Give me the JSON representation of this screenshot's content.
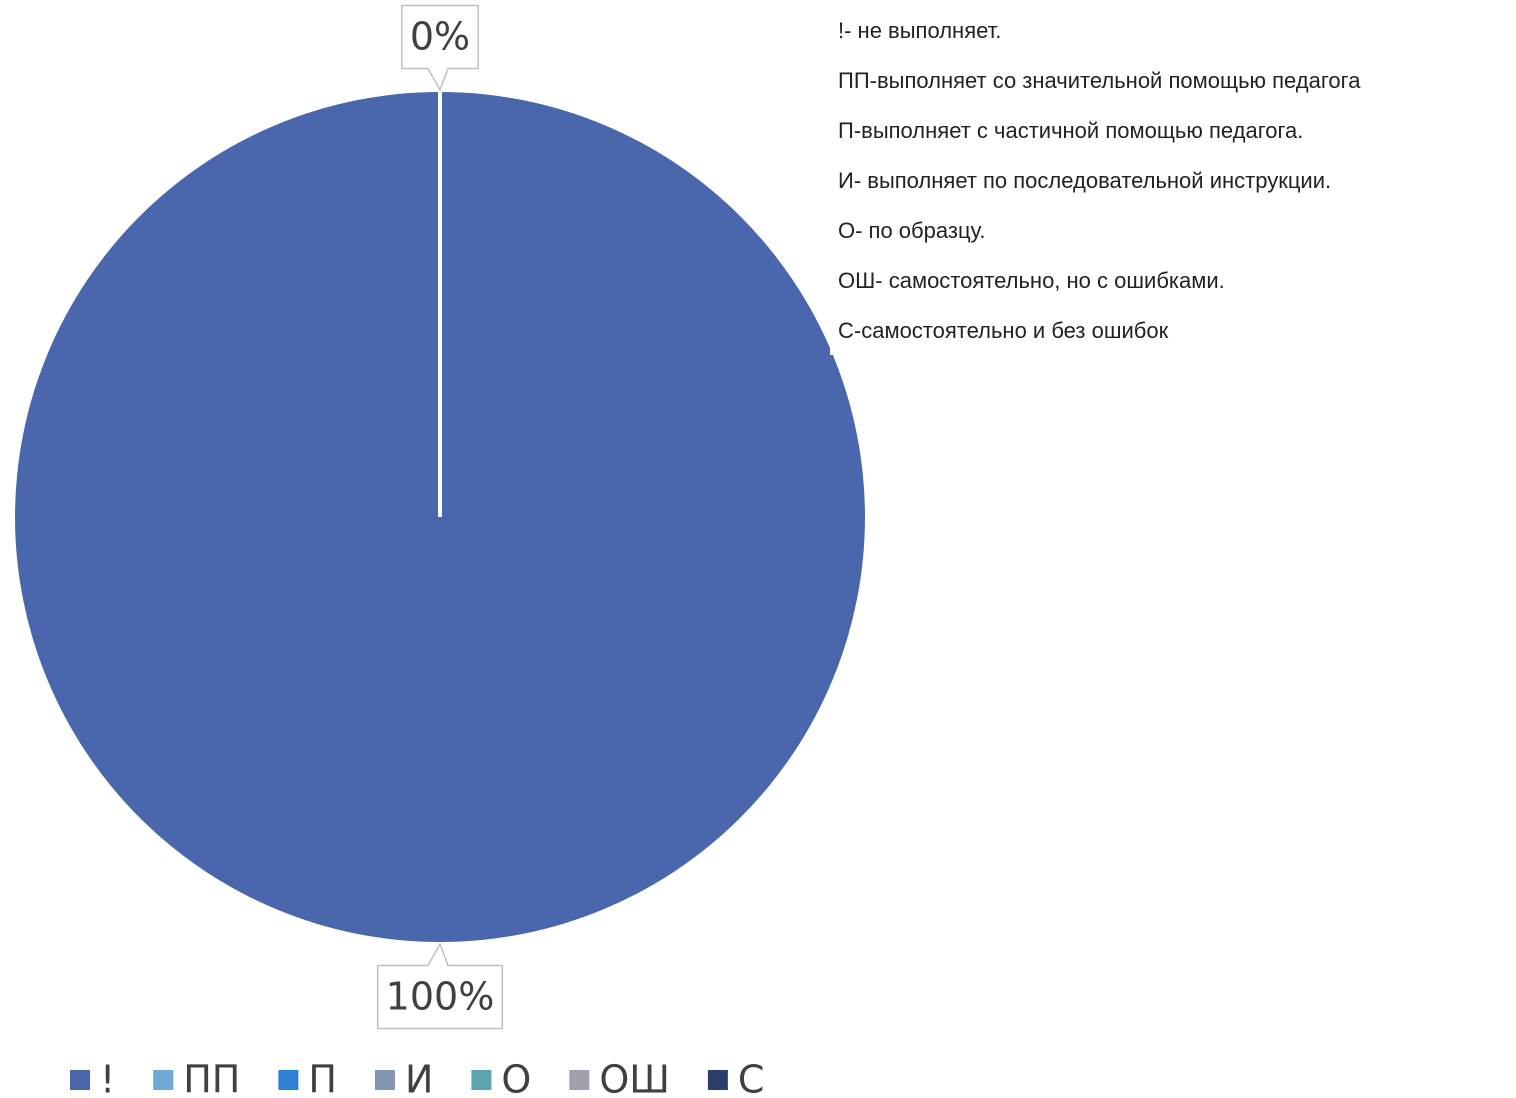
{
  "chart_data": {
    "type": "pie",
    "categories": [
      "!",
      "ПП",
      "П",
      "И",
      "О",
      "ОШ",
      "С"
    ],
    "values": [
      100,
      0,
      0,
      0,
      0,
      0,
      0
    ],
    "value_labels": [
      "100%",
      "0%",
      null,
      null,
      null,
      null,
      null
    ],
    "colors": [
      "#4a67ad",
      "#6fa8d9",
      "#2e80d6",
      "#8497b0",
      "#5aa5ae",
      "#a59eae",
      "#2c3f6a"
    ],
    "legend": "bottom",
    "notes": [
      "!- не выполняет.",
      "ПП-выполняет со значительной помощью педагога",
      "П-выполняет с частичной помощью педагога.",
      "И- выполняет по последовательной инструкции.",
      "О- по образцу.",
      "ОШ- самостоятельно, но с ошибками.",
      "С-самостоятельно и без ошибок"
    ]
  }
}
